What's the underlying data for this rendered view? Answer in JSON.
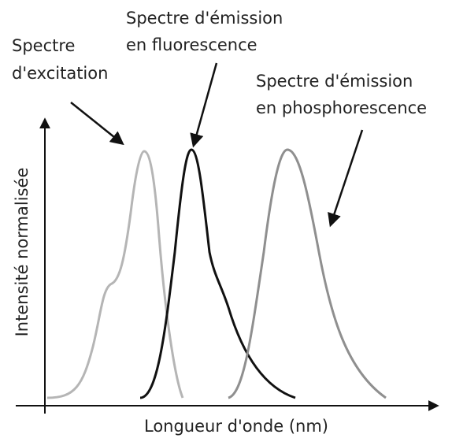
{
  "labels": [
    {
      "lines": [
        "Spectre",
        "d'excitation"
      ]
    },
    {
      "lines": [
        "Spectre d'émission",
        "en fluorescence"
      ]
    },
    {
      "lines": [
        "Spectre d'émission",
        "en phosphorescence"
      ]
    }
  ],
  "axes": {
    "y_label": "Intensité normalisée",
    "x_label": "Longueur d'onde (nm)"
  }
}
